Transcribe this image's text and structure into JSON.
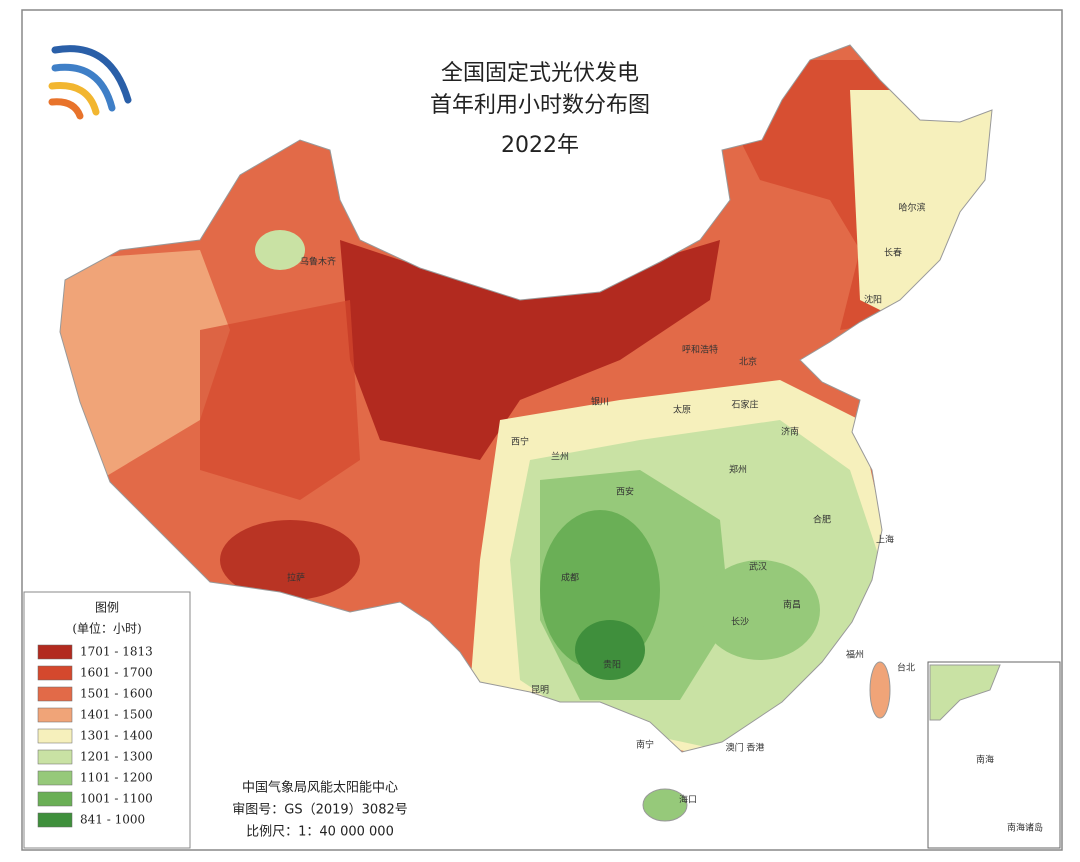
{
  "header": {
    "title_line1": "全国固定式光伏发电",
    "title_line2": "首年利用小时数分布图",
    "year": "2022年"
  },
  "legend": {
    "title": "图例",
    "unit": "(单位：小时)",
    "items": [
      {
        "label": "1701 - 1813",
        "color": "#b22a1f"
      },
      {
        "label": "1601 - 1700",
        "color": "#d4482d"
      },
      {
        "label": "1501 - 1600",
        "color": "#e26a48"
      },
      {
        "label": "1401 - 1500",
        "color": "#f0a478"
      },
      {
        "label": "1301 - 1400",
        "color": "#f6f0bc"
      },
      {
        "label": "1201 - 1300",
        "color": "#c9e2a4"
      },
      {
        "label": "1101 - 1200",
        "color": "#96c97a"
      },
      {
        "label": "1001 - 1100",
        "color": "#6aaf56"
      },
      {
        "label": "841 - 1000",
        "color": "#3f8f3c"
      }
    ]
  },
  "footer": {
    "source": "中国气象局风能太阳能中心",
    "approval": "审图号：GS（2019）3082号",
    "scale": "比例尺：1：40 000 000"
  },
  "inset": {
    "label": "南海诸岛",
    "sea": "南海"
  },
  "city_labels": [
    "哈尔滨",
    "长春",
    "沈阳",
    "呼和浩特",
    "北京",
    "银川",
    "太原",
    "石家庄",
    "济南",
    "西宁",
    "兰州",
    "西安",
    "郑州",
    "合肥",
    "上海",
    "武汉",
    "成都",
    "拉萨",
    "长沙",
    "南昌",
    "福州",
    "贵阳",
    "昆明",
    "南宁",
    "澳门 香港",
    "海口",
    "乌鲁木齐",
    "台北"
  ]
}
